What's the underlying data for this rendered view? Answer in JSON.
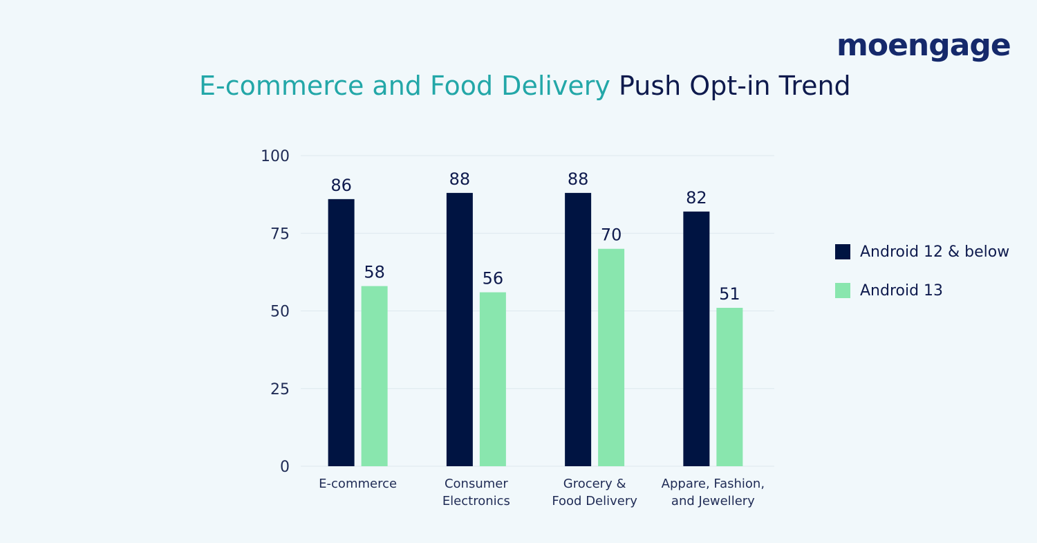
{
  "brand": {
    "name": "moengage"
  },
  "colors": {
    "background": "#f1f8fb",
    "title_accent": "#23a7a8",
    "title_main": "#0e1a4d",
    "series_dark": "#001442",
    "series_light": "#89e6ae",
    "axis_text": "#1f2b55",
    "grid": "#dde8ee",
    "logo": "#15296b"
  },
  "chart_data": {
    "type": "bar",
    "title_highlight": "E-commerce and Food Delivery",
    "title_rest": "Push Opt-in Trend",
    "categories": [
      [
        "E-commerce"
      ],
      [
        "Consumer",
        "Electronics"
      ],
      [
        "Grocery &",
        "Food Delivery"
      ],
      [
        "Appare, Fashion,",
        "and Jewellery"
      ]
    ],
    "series": [
      {
        "name": "Android 12 & below",
        "values": [
          86,
          88,
          88,
          82
        ]
      },
      {
        "name": "Android 13",
        "values": [
          58,
          56,
          70,
          51
        ]
      }
    ],
    "ylim": [
      0,
      100
    ],
    "yticks": [
      0,
      25,
      50,
      75,
      100
    ],
    "grid": true,
    "legend_position": "right"
  }
}
